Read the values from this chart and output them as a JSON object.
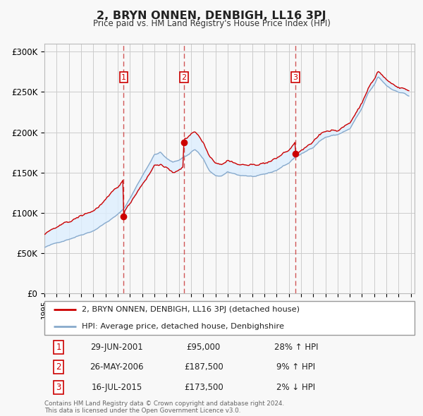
{
  "title": "2, BRYN ONNEN, DENBIGH, LL16 3PJ",
  "subtitle": "Price paid vs. HM Land Registry's House Price Index (HPI)",
  "xlim_start": 1995.0,
  "xlim_end": 2025.3,
  "ylim_min": 0,
  "ylim_max": 310000,
  "yticks": [
    0,
    50000,
    100000,
    150000,
    200000,
    250000,
    300000
  ],
  "ytick_labels": [
    "£0",
    "£50K",
    "£100K",
    "£150K",
    "£200K",
    "£250K",
    "£300K"
  ],
  "sale_color": "#cc0000",
  "hpi_color": "#88aacc",
  "hpi_fill_color": "#ddeeff",
  "grid_color": "#cccccc",
  "background_color": "#f8f8f8",
  "transactions": [
    {
      "num": 1,
      "date_x": 2001.49,
      "price": 95000,
      "label": "29-JUN-2001",
      "price_str": "£95,000",
      "pct": "28% ↑ HPI"
    },
    {
      "num": 2,
      "date_x": 2006.4,
      "price": 187500,
      "label": "26-MAY-2006",
      "price_str": "£187,500",
      "pct": "9% ↑ HPI"
    },
    {
      "num": 3,
      "date_x": 2015.54,
      "price": 173500,
      "label": "16-JUL-2015",
      "price_str": "£173,500",
      "pct": "2% ↓ HPI"
    }
  ],
  "legend_sale_label": "2, BRYN ONNEN, DENBIGH, LL16 3PJ (detached house)",
  "legend_hpi_label": "HPI: Average price, detached house, Denbighshire",
  "footnote": "Contains HM Land Registry data © Crown copyright and database right 2024.\nThis data is licensed under the Open Government Licence v3.0."
}
